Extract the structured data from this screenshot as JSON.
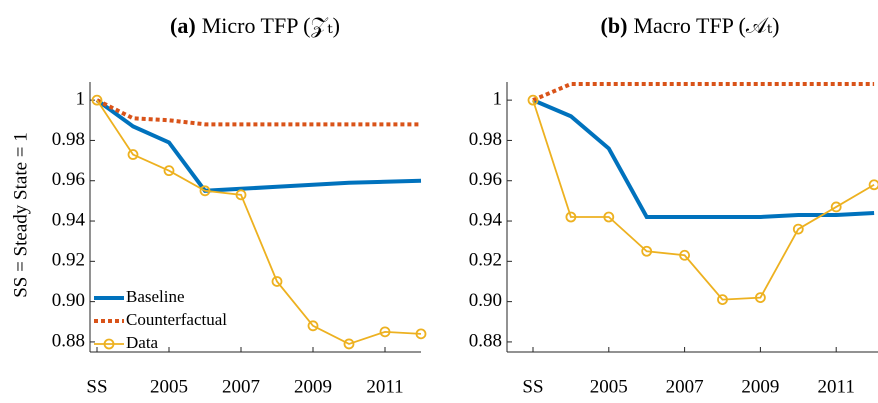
{
  "chart_data": [
    {
      "type": "line",
      "panel_label": "(a)",
      "title": "Micro TFP (𝒵ₜ)",
      "ylabel": "SS = Steady State = 1",
      "categories": [
        "SS",
        null,
        "2005",
        null,
        "2007",
        null,
        "2009",
        null,
        "2011",
        null
      ],
      "ylim": [
        0.875,
        1.009
      ],
      "yticks": [
        0.88,
        {
          "value": 0.9,
          "label": "0.90"
        },
        0.92,
        0.94,
        0.96,
        0.98,
        1
      ],
      "legend": "lower left",
      "series": [
        {
          "name": "Baseline",
          "color": "#0072bd",
          "style": "solid",
          "values": [
            1,
            0.987,
            0.979,
            0.955,
            0.956,
            0.957,
            0.958,
            0.959,
            0.9595,
            0.96
          ]
        },
        {
          "name": "Counterfactual",
          "color": "#d95319",
          "style": "dotted",
          "values": [
            1,
            0.991,
            0.99,
            0.988,
            0.988,
            0.988,
            0.988,
            0.988,
            0.988,
            0.988
          ]
        },
        {
          "name": "Data",
          "color": "#edb120",
          "style": "marker",
          "values": [
            1,
            0.973,
            0.965,
            0.955,
            0.953,
            0.91,
            0.888,
            0.879,
            0.885,
            0.884
          ]
        }
      ]
    },
    {
      "type": "line",
      "panel_label": "(b)",
      "title": "Macro TFP (𝒜ₜ)",
      "categories": [
        "SS",
        null,
        "2005",
        null,
        "2007",
        null,
        "2009",
        null,
        "2011",
        null
      ],
      "ylim": [
        0.875,
        1.009
      ],
      "yticks": [
        0.88,
        {
          "value": 0.9,
          "label": "0.90"
        },
        0.92,
        0.94,
        0.96,
        0.98,
        1
      ],
      "series": [
        {
          "name": "Baseline",
          "color": "#0072bd",
          "style": "solid",
          "values": [
            1,
            0.992,
            0.976,
            0.942,
            0.942,
            0.942,
            0.942,
            0.943,
            0.943,
            0.944
          ]
        },
        {
          "name": "Counterfactual",
          "color": "#d95319",
          "style": "dotted",
          "values": [
            1,
            1.008,
            1.008,
            1.008,
            1.008,
            1.008,
            1.008,
            1.008,
            1.008,
            1.008
          ]
        },
        {
          "name": "Data",
          "color": "#edb120",
          "style": "marker",
          "values": [
            1,
            0.942,
            0.942,
            0.925,
            0.923,
            0.901,
            0.902,
            0.936,
            0.947,
            0.958
          ]
        }
      ]
    }
  ]
}
